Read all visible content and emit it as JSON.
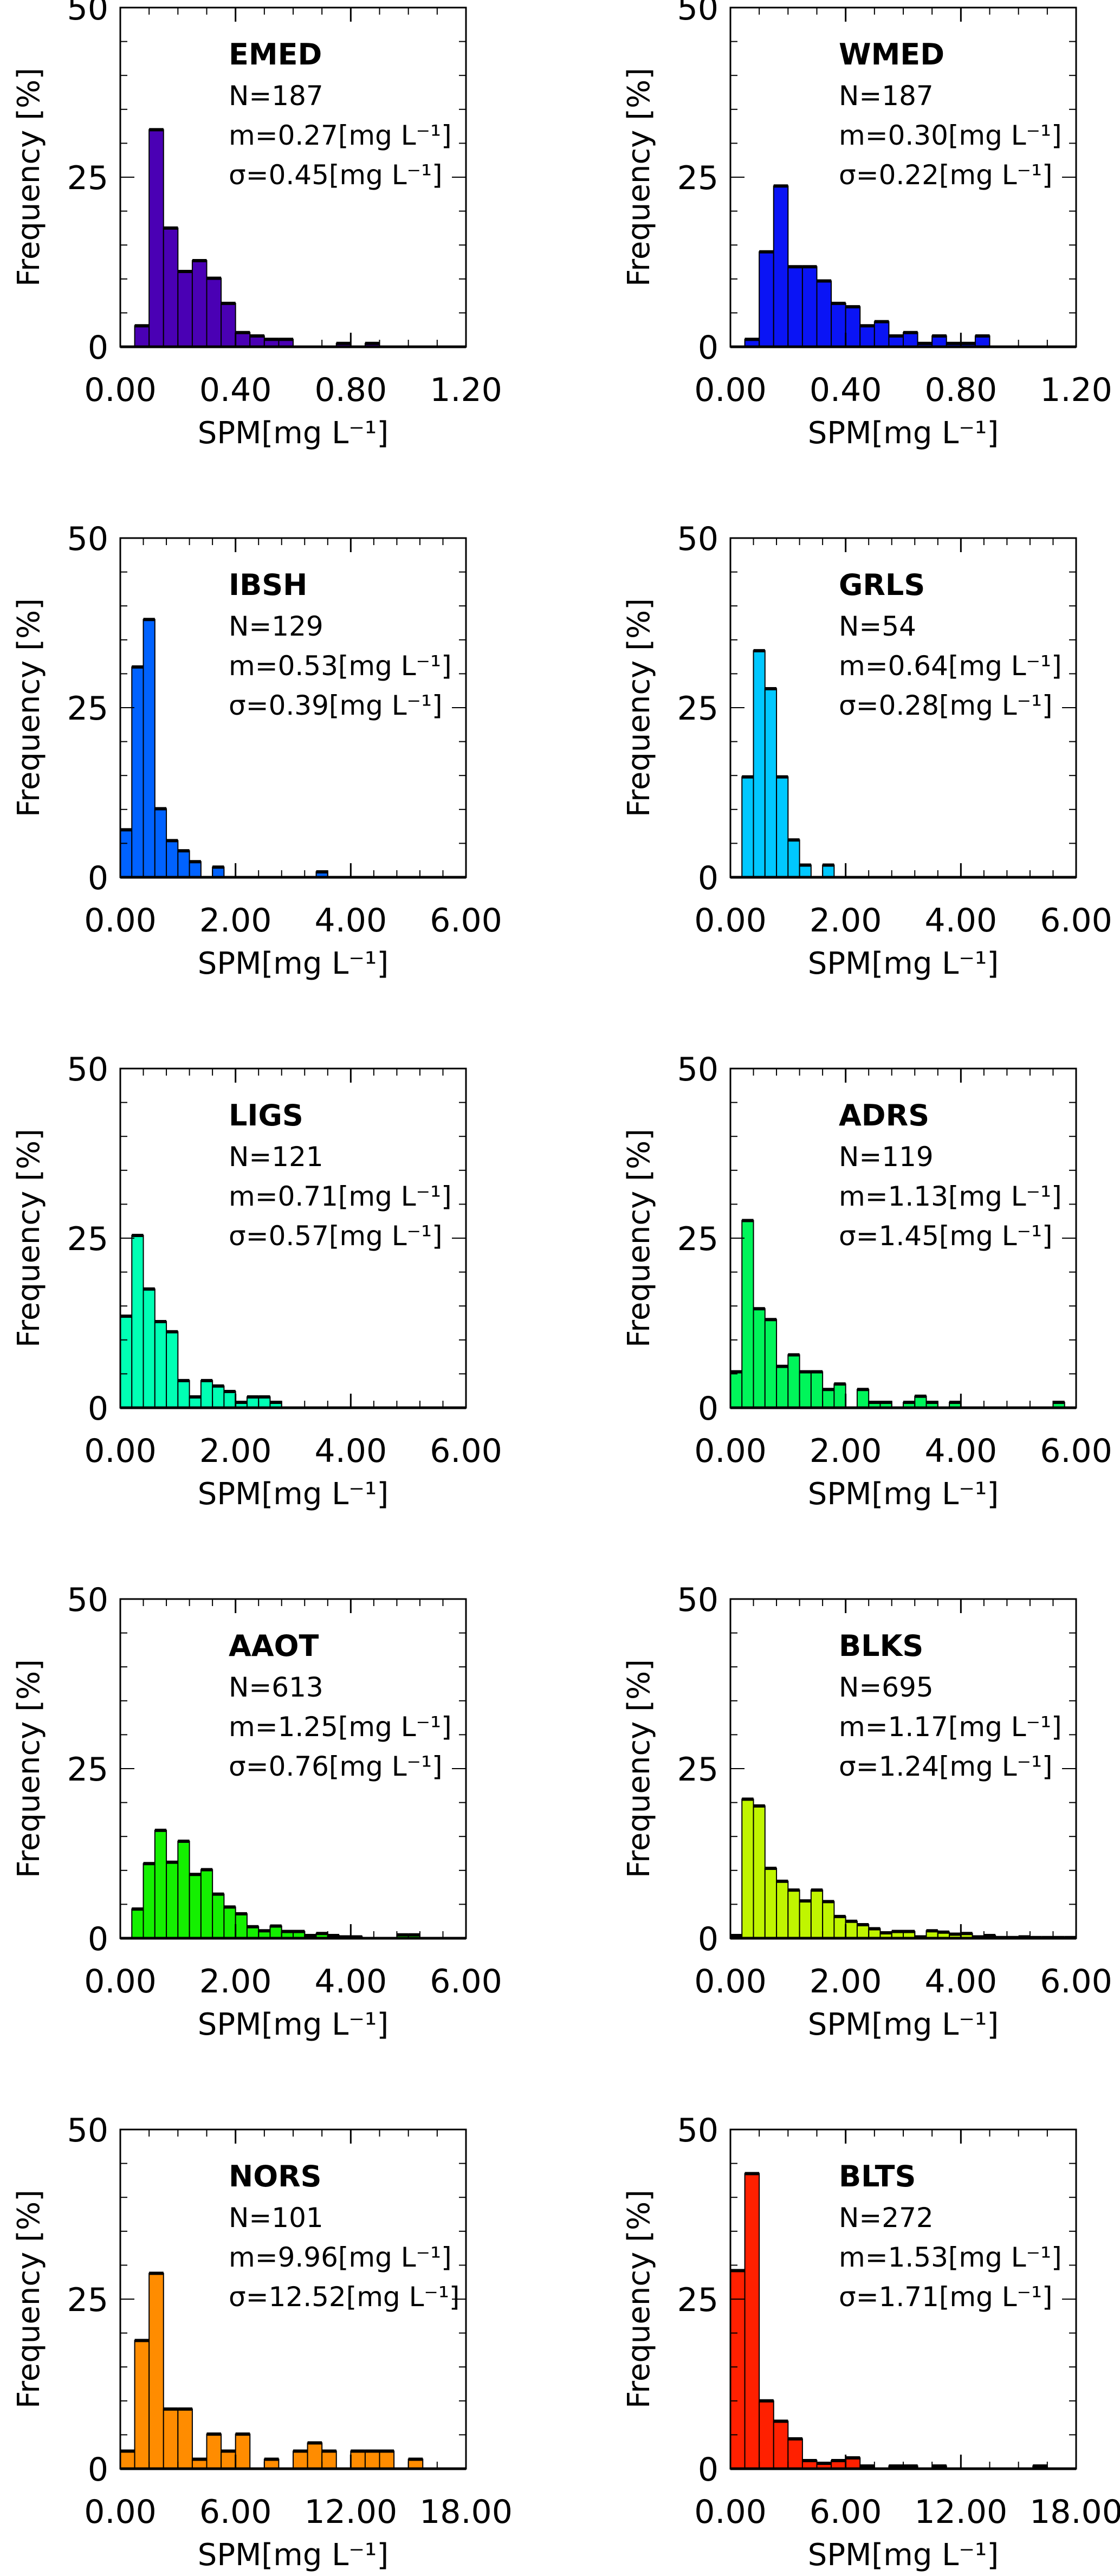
{
  "chart_data": [
    {
      "type": "bar",
      "region": "EMED",
      "n_label": "N=187",
      "m_label": "m=0.27[mg L⁻¹]",
      "sigma_label": "σ=0.45[mg L⁻¹]",
      "color": "#4a00b4",
      "bin_width": 0.05,
      "xlim": [
        0,
        1.2
      ],
      "ylim": [
        0,
        50
      ],
      "xticks": [
        "0.00",
        "0.40",
        "0.80",
        "1.20"
      ],
      "xtick_values": [
        0,
        0.4,
        0.8,
        1.2
      ],
      "minor_x": 4,
      "values": [
        0,
        3.1,
        32,
        17.5,
        11.1,
        12.7,
        10.1,
        6.4,
        2.1,
        1.6,
        1.1,
        1.1,
        0,
        0,
        0,
        0.5,
        0,
        0.5,
        0,
        0,
        0,
        0,
        0,
        0
      ]
    },
    {
      "type": "bar",
      "region": "WMED",
      "n_label": "N=187",
      "m_label": "m=0.30[mg L⁻¹]",
      "sigma_label": "σ=0.22[mg L⁻¹]",
      "color": "#0a14f5",
      "bin_width": 0.05,
      "xlim": [
        0,
        1.2
      ],
      "ylim": [
        0,
        50
      ],
      "xticks": [
        "0.00",
        "0.40",
        "0.80",
        "1.20"
      ],
      "xtick_values": [
        0,
        0.4,
        0.8,
        1.2
      ],
      "minor_x": 4,
      "values": [
        0,
        1.1,
        14,
        23.7,
        11.8,
        11.8,
        9.7,
        6.4,
        5.9,
        3.1,
        3.7,
        1.6,
        2.1,
        0.5,
        1.6,
        0.5,
        0.5,
        1.6,
        0,
        0,
        0,
        0,
        0,
        0
      ]
    },
    {
      "type": "bar",
      "region": "IBSH",
      "n_label": "N=129",
      "m_label": "m=0.53[mg L⁻¹]",
      "sigma_label": "σ=0.39[mg L⁻¹]",
      "color": "#0062ff",
      "bin_width": 0.2,
      "xlim": [
        0,
        6
      ],
      "ylim": [
        0,
        50
      ],
      "xticks": [
        "0.00",
        "2.00",
        "4.00",
        "6.00"
      ],
      "xtick_values": [
        0,
        2,
        4,
        6
      ],
      "minor_x": 5,
      "values": [
        7.0,
        31,
        38,
        10.1,
        5.4,
        3.9,
        2.3,
        0,
        1.5,
        0,
        0,
        0,
        0,
        0,
        0,
        0,
        0,
        0.8,
        0,
        0,
        0,
        0,
        0,
        0,
        0,
        0,
        0,
        0,
        0,
        0
      ]
    },
    {
      "type": "bar",
      "region": "GRLS",
      "n_label": "N=54",
      "m_label": "m=0.64[mg L⁻¹]",
      "sigma_label": "σ=0.28[mg L⁻¹]",
      "color": "#00c8ff",
      "bin_width": 0.2,
      "xlim": [
        0,
        6
      ],
      "ylim": [
        0,
        50
      ],
      "xticks": [
        "0.00",
        "2.00",
        "4.00",
        "6.00"
      ],
      "xtick_values": [
        0,
        2,
        4,
        6
      ],
      "minor_x": 5,
      "values": [
        0,
        14.8,
        33.4,
        27.8,
        14.8,
        5.5,
        1.8,
        0,
        1.8,
        0,
        0,
        0,
        0,
        0,
        0,
        0,
        0,
        0,
        0,
        0,
        0,
        0,
        0,
        0,
        0,
        0,
        0,
        0,
        0,
        0
      ]
    },
    {
      "type": "bar",
      "region": "LIGS",
      "n_label": "N=121",
      "m_label": "m=0.71[mg L⁻¹]",
      "sigma_label": "σ=0.57[mg L⁻¹]",
      "color": "#00ffb4",
      "bin_width": 0.2,
      "xlim": [
        0,
        6
      ],
      "ylim": [
        0,
        50
      ],
      "xticks": [
        "0.00",
        "2.00",
        "4.00",
        "6.00"
      ],
      "xtick_values": [
        0,
        2,
        4,
        6
      ],
      "minor_x": 5,
      "values": [
        13.5,
        25.4,
        17.5,
        12.7,
        11.2,
        4.0,
        1.6,
        4.0,
        3.2,
        2.4,
        0.8,
        1.6,
        1.6,
        0.8,
        0,
        0,
        0,
        0,
        0,
        0,
        0,
        0,
        0,
        0,
        0,
        0,
        0,
        0,
        0,
        0
      ]
    },
    {
      "type": "bar",
      "region": "ADRS",
      "n_label": "N=119",
      "m_label": "m=1.13[mg L⁻¹]",
      "sigma_label": "σ=1.45[mg L⁻¹]",
      "color": "#00f55a",
      "bin_width": 0.2,
      "xlim": [
        0,
        6
      ],
      "ylim": [
        0,
        50
      ],
      "xticks": [
        "0.00",
        "2.00",
        "4.00",
        "6.00"
      ],
      "xtick_values": [
        0,
        2,
        4,
        6
      ],
      "minor_x": 5,
      "values": [
        5.3,
        27.6,
        14.6,
        13.0,
        6.1,
        7.8,
        5.3,
        5.3,
        2.7,
        3.5,
        0,
        2.7,
        0.8,
        0.8,
        0,
        0.8,
        1.7,
        0.8,
        0,
        0.8,
        0,
        0,
        0,
        0,
        0,
        0,
        0,
        0,
        0.8,
        0
      ]
    },
    {
      "type": "bar",
      "region": "AAOT",
      "n_label": "N=613",
      "m_label": "m=1.25[mg L⁻¹]",
      "sigma_label": "σ=0.76[mg L⁻¹]",
      "color": "#14f000",
      "bin_width": 0.2,
      "xlim": [
        0,
        6
      ],
      "ylim": [
        0,
        50
      ],
      "xticks": [
        "0.00",
        "2.00",
        "4.00",
        "6.00"
      ],
      "xtick_values": [
        0,
        2,
        4,
        6
      ],
      "minor_x": 5,
      "values": [
        0,
        4.3,
        11.0,
        15.9,
        11.2,
        14.3,
        9.4,
        10.1,
        6.5,
        4.6,
        3.6,
        1.7,
        1.1,
        1.8,
        1.0,
        1.0,
        0.4,
        0.7,
        0.4,
        0.2,
        0.2,
        0,
        0,
        0,
        0.5,
        0.5,
        0,
        0,
        0,
        0
      ]
    },
    {
      "type": "bar",
      "region": "BLKS",
      "n_label": "N=695",
      "m_label": "m=1.17[mg L⁻¹]",
      "sigma_label": "σ=1.24[mg L⁻¹]",
      "color": "#c0f500",
      "bin_width": 0.2,
      "xlim": [
        0,
        6
      ],
      "ylim": [
        0,
        50
      ],
      "xticks": [
        "0.00",
        "2.00",
        "4.00",
        "6.00"
      ],
      "xtick_values": [
        0,
        2,
        4,
        6
      ],
      "minor_x": 5,
      "values": [
        0.4,
        20.5,
        19.5,
        10.3,
        8.4,
        7.1,
        5.5,
        7.1,
        5.4,
        3.2,
        2.5,
        2.0,
        1.4,
        0.8,
        1.0,
        1.0,
        0.2,
        1.1,
        0.9,
        0.6,
        0.7,
        0.2,
        0.4,
        0.1,
        0.1,
        0.2,
        0.1,
        0.1,
        0.1,
        0.1
      ]
    },
    {
      "type": "bar",
      "region": "NORS",
      "n_label": "N=101",
      "m_label": "m=9.96[mg L⁻¹]",
      "sigma_label": "σ=12.52[mg L⁻¹]",
      "color": "#ff8c00",
      "bin_width": 0.75,
      "xlim": [
        0,
        18
      ],
      "ylim": [
        0,
        50
      ],
      "xticks": [
        "0.00",
        "6.00",
        "12.00",
        "18.00"
      ],
      "xtick_values": [
        0,
        6,
        12,
        18
      ],
      "minor_x": 4,
      "values": [
        2.6,
        18.9,
        28.8,
        8.8,
        8.8,
        1.4,
        5.1,
        2.6,
        5.1,
        0,
        1.4,
        0,
        2.6,
        3.8,
        2.6,
        0,
        2.6,
        2.6,
        2.6,
        0,
        1.4,
        0,
        0,
        0
      ]
    },
    {
      "type": "bar",
      "region": "BLTS",
      "n_label": "N=272",
      "m_label": "m=1.53[mg L⁻¹]",
      "sigma_label": "σ=1.71[mg L⁻¹]",
      "color": "#ff2000",
      "bin_width": 0.75,
      "xlim": [
        0,
        18
      ],
      "ylim": [
        0,
        50
      ],
      "xticks": [
        "0.00",
        "6.00",
        "12.00",
        "18.00"
      ],
      "xtick_values": [
        0,
        6,
        12,
        18
      ],
      "minor_x": 4,
      "values": [
        29.2,
        43.5,
        10.0,
        7.0,
        4.4,
        1.2,
        0.8,
        1.2,
        1.6,
        0.4,
        0,
        0.4,
        0.4,
        0,
        0.4,
        0,
        0,
        0,
        0,
        0,
        0,
        0.4,
        0,
        0
      ]
    }
  ],
  "axes": {
    "xlabel": "SPM[mg L⁻¹]",
    "ylabel": "Frequency [%]",
    "yticks": [
      "0",
      "25",
      "50"
    ],
    "ytick_values": [
      0,
      25,
      50
    ]
  }
}
